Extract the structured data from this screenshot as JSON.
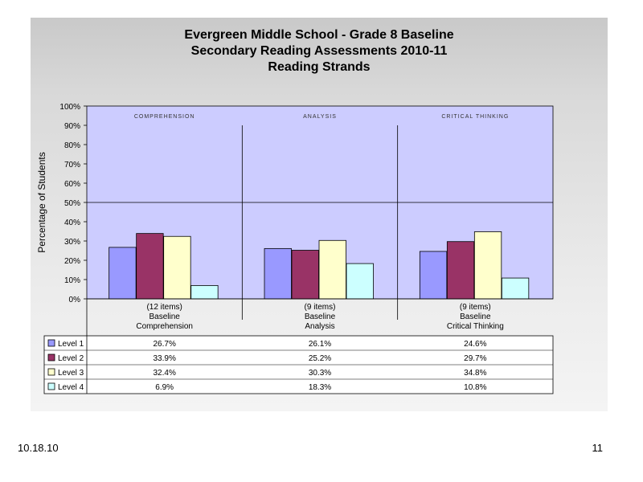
{
  "title_lines": [
    "Evergreen Middle School - Grade 8 Baseline",
    "Secondary Reading Assessments 2010-11",
    "Reading Strands"
  ],
  "footer": {
    "date": "10.18.10",
    "page": "11"
  },
  "chart_data": {
    "type": "bar",
    "ylabel": "Percentage of Students",
    "ylim": [
      0,
      100
    ],
    "yticks": [
      "0%",
      "10%",
      "20%",
      "30%",
      "40%",
      "50%",
      "60%",
      "70%",
      "80%",
      "90%",
      "100%"
    ],
    "panel_labels": [
      "COMPREHENSION",
      "ANALYSIS",
      "CRITICAL THINKING"
    ],
    "categories": [
      [
        "(12 items)",
        "Baseline",
        "Comprehension"
      ],
      [
        "(9 items)",
        "Baseline",
        "Analysis"
      ],
      [
        "(9 items)",
        "Baseline",
        "Critical Thinking"
      ]
    ],
    "series": [
      {
        "name": "Level 1",
        "color": "#9999ff",
        "values": [
          26.7,
          26.1,
          24.6
        ],
        "labels": [
          "26.7%",
          "26.1%",
          "24.6%"
        ]
      },
      {
        "name": "Level 2",
        "color": "#993366",
        "values": [
          33.9,
          25.2,
          29.7
        ],
        "labels": [
          "33.9%",
          "25.2%",
          "29.7%"
        ]
      },
      {
        "name": "Level 3",
        "color": "#ffffcc",
        "values": [
          32.4,
          30.3,
          34.8
        ],
        "labels": [
          "32.4%",
          "30.3%",
          "34.8%"
        ]
      },
      {
        "name": "Level 4",
        "color": "#ccffff",
        "values": [
          6.9,
          18.3,
          10.8
        ],
        "labels": [
          "6.9%",
          "18.3%",
          "10.8%"
        ]
      }
    ],
    "reference_line": 50,
    "plot_background": "#ccccff",
    "grid": false
  }
}
